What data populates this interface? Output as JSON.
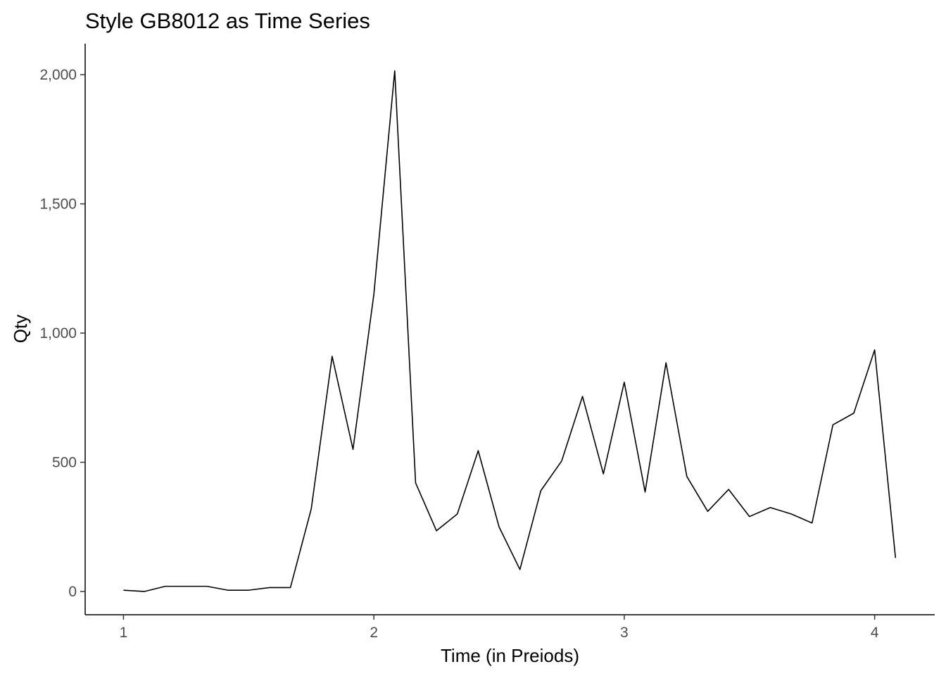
{
  "chart_data": {
    "type": "line",
    "title": "Style GB8012 as Time Series",
    "xlabel": "Time (in Preiods)",
    "ylabel": "Qty",
    "xlim": [
      0.847,
      4.24
    ],
    "ylim": [
      -90,
      2120
    ],
    "x_ticks": [
      1,
      2,
      3,
      4
    ],
    "x_tick_labels": [
      "1",
      "2",
      "3",
      "4"
    ],
    "y_ticks": [
      0,
      500,
      1000,
      1500,
      2000
    ],
    "y_tick_labels": [
      "0",
      "500",
      "1,000",
      "1,500",
      "2,000"
    ],
    "grid": false,
    "series": [
      {
        "color": "#000000",
        "x": [
          1.0,
          1.0833,
          1.1667,
          1.25,
          1.3333,
          1.4167,
          1.5,
          1.5833,
          1.6667,
          1.75,
          1.8333,
          1.9167,
          2.0,
          2.0833,
          2.1667,
          2.25,
          2.3333,
          2.4167,
          2.5,
          2.5833,
          2.6667,
          2.75,
          2.8333,
          2.9167,
          3.0,
          3.0833,
          3.1667,
          3.25,
          3.3333,
          3.4167,
          3.5,
          3.5833,
          3.6667,
          3.75,
          3.8333,
          3.9167,
          4.0,
          4.0833
        ],
        "y": [
          5,
          0,
          20,
          20,
          20,
          5,
          5,
          15,
          15,
          320,
          910,
          550,
          1150,
          2015,
          420,
          235,
          300,
          545,
          250,
          85,
          390,
          505,
          755,
          455,
          810,
          385,
          885,
          445,
          310,
          395,
          290,
          325,
          300,
          265,
          645,
          690,
          935,
          130
        ]
      }
    ]
  }
}
